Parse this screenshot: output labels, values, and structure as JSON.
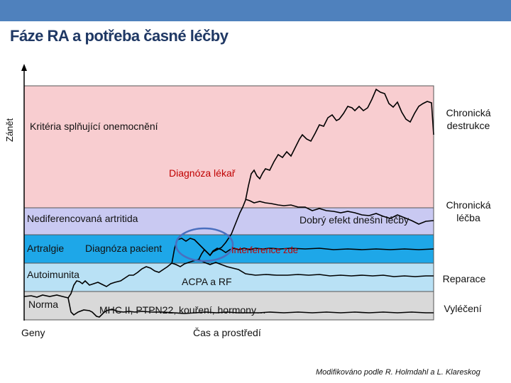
{
  "title": "Fáze RA a potřeba časné léčby",
  "y_axis_label": "Zánět",
  "x_axis_label": "Čas a prostředí",
  "bands": {
    "criteria": "Kritéria splňující onemocnění",
    "undifferentiated": "Nediferencovaná artritida",
    "arthralgia": "Artralgie",
    "autoimmunity": "Autoimunita",
    "normal": "Norma",
    "genes": "Geny"
  },
  "annotations": {
    "diagnosis_doctor": "Diagnóza lékař",
    "diagnosis_patient": "Diagnóza pacient",
    "interference": "Interference zde",
    "good_effect": "Dobrý efekt dnešní léčby",
    "acpa": "ACPA a RF",
    "factors": "MHC II, PTPN22, kouření, hormony…"
  },
  "outcomes": {
    "destruction_line1": "Chronická",
    "destruction_line2": "destrukce",
    "chronic_line1": "Chronická",
    "chronic_line2": "léčba",
    "repair": "Reparace",
    "cure": "Vyléčení"
  },
  "credit": "Modifikováno podle R. Holmdahl a L. Klareskog",
  "colors": {
    "header": "#4f81bd",
    "band_criteria": "#f8cdd0",
    "band_undifferentiated": "#c9c9f2",
    "band_arthralgia": "#1ea7e8",
    "band_autoimmunity": "#b9e1f5",
    "band_normal": "#d9d9d9",
    "interference_text": "#c00000",
    "circle": "#4a6fbf"
  }
}
